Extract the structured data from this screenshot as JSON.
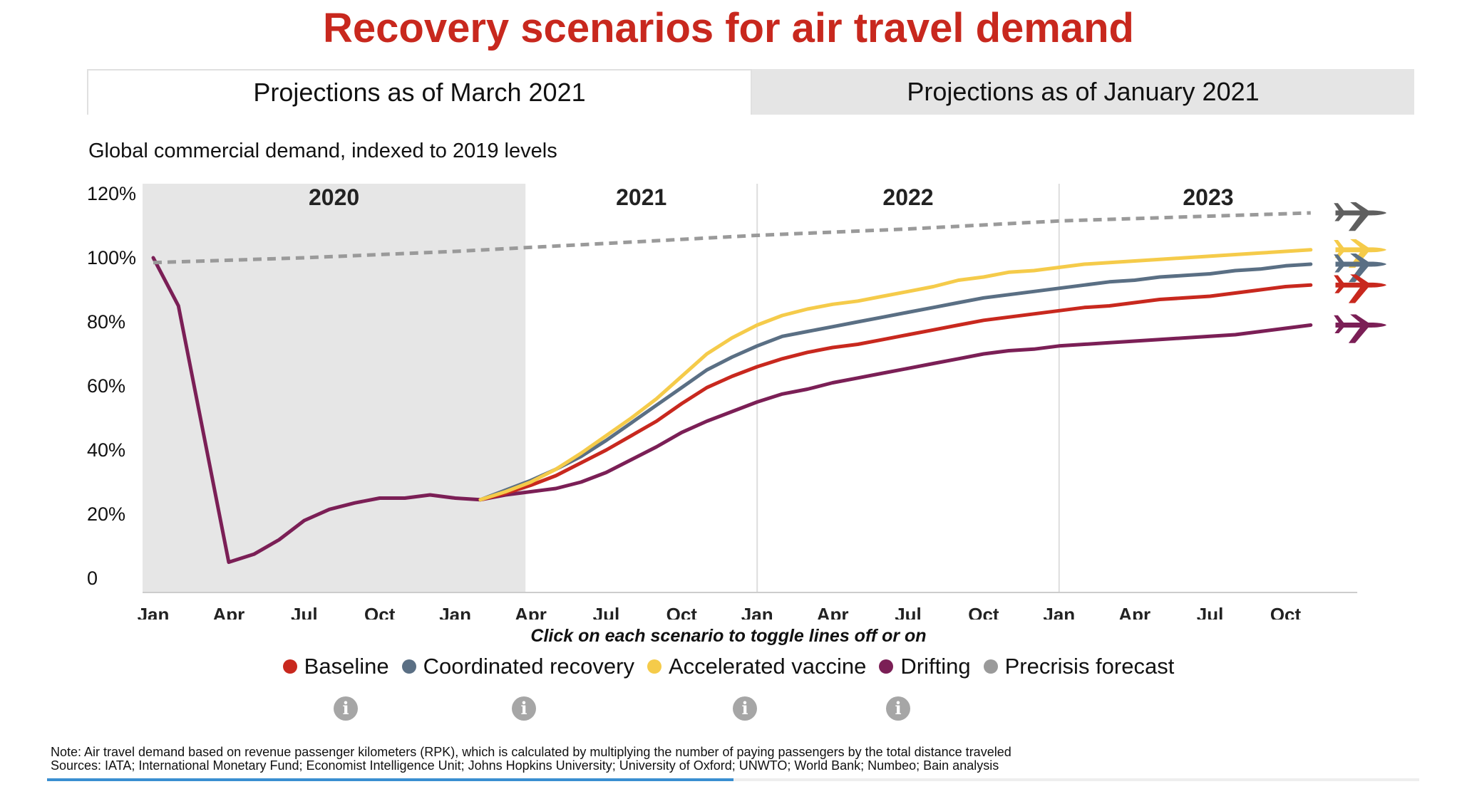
{
  "title": "Recovery scenarios for air travel demand",
  "tabs": [
    {
      "label": "Projections as of March 2021",
      "active": true
    },
    {
      "label": "Projections as of January 2021",
      "active": false
    }
  ],
  "subtitle": "Global commercial demand, indexed to 2019 levels",
  "chart_data": {
    "type": "line",
    "ylabel": "Global commercial demand, indexed to 2019 levels",
    "ylim": [
      0,
      120
    ],
    "ytick_labels": [
      "0",
      "20%",
      "40%",
      "60%",
      "80%",
      "100%",
      "120%"
    ],
    "xrange_months": [
      "2020-01",
      "2023-12"
    ],
    "x_ticks": [
      {
        "date": "2020-01",
        "label": "Jan"
      },
      {
        "date": "2020-04",
        "label": "Apr"
      },
      {
        "date": "2020-07",
        "label": "Jul"
      },
      {
        "date": "2020-10",
        "label": "Oct"
      },
      {
        "date": "2021-01",
        "label": "Jan"
      },
      {
        "date": "2021-04",
        "label": "Apr"
      },
      {
        "date": "2021-07",
        "label": "Jul"
      },
      {
        "date": "2021-10",
        "label": "Oct"
      },
      {
        "date": "2022-01",
        "label": "Jan"
      },
      {
        "date": "2022-04",
        "label": "Apr"
      },
      {
        "date": "2022-07",
        "label": "Jul"
      },
      {
        "date": "2022-10",
        "label": "Oct"
      },
      {
        "date": "2023-01",
        "label": "Jan"
      },
      {
        "date": "2023-04",
        "label": "Apr"
      },
      {
        "date": "2023-07",
        "label": "Jul"
      },
      {
        "date": "2023-10",
        "label": "Oct"
      }
    ],
    "year_labels": [
      {
        "label": "2020",
        "shaded": true
      },
      {
        "label": "2021",
        "shaded": false
      },
      {
        "label": "2022",
        "shaded": false
      },
      {
        "label": "2023",
        "shaded": false
      }
    ],
    "shaded_region": [
      "2020-01",
      "2021-03"
    ],
    "year_dividers": [
      "2022-01",
      "2023-01"
    ],
    "grid": false,
    "legend_position": "bottom",
    "series": [
      {
        "name": "Drifting",
        "color": "#7b1f56",
        "dashed": false,
        "points": [
          [
            "2020-01",
            100
          ],
          [
            "2020-02",
            85
          ],
          [
            "2020-03",
            45
          ],
          [
            "2020-04",
            5
          ],
          [
            "2020-05",
            7.5
          ],
          [
            "2020-06",
            12
          ],
          [
            "2020-07",
            18
          ],
          [
            "2020-08",
            21.5
          ],
          [
            "2020-09",
            23.5
          ],
          [
            "2020-10",
            25
          ],
          [
            "2020-11",
            25
          ],
          [
            "2020-12",
            26
          ],
          [
            "2021-01",
            25
          ],
          [
            "2021-02",
            24.5
          ],
          [
            "2021-03",
            26
          ],
          [
            "2021-04",
            27
          ],
          [
            "2021-05",
            28
          ],
          [
            "2021-06",
            30
          ],
          [
            "2021-07",
            33
          ],
          [
            "2021-08",
            37
          ],
          [
            "2021-09",
            41
          ],
          [
            "2021-10",
            45.5
          ],
          [
            "2021-11",
            49
          ],
          [
            "2021-12",
            52
          ],
          [
            "2022-01",
            55
          ],
          [
            "2022-02",
            57.5
          ],
          [
            "2022-03",
            59
          ],
          [
            "2022-04",
            61
          ],
          [
            "2022-05",
            62.5
          ],
          [
            "2022-06",
            64
          ],
          [
            "2022-07",
            65.5
          ],
          [
            "2022-08",
            67
          ],
          [
            "2022-09",
            68.5
          ],
          [
            "2022-10",
            70
          ],
          [
            "2022-11",
            71
          ],
          [
            "2022-12",
            71.5
          ],
          [
            "2023-01",
            72.5
          ],
          [
            "2023-02",
            73
          ],
          [
            "2023-03",
            73.5
          ],
          [
            "2023-04",
            74
          ],
          [
            "2023-05",
            74.5
          ],
          [
            "2023-06",
            75
          ],
          [
            "2023-07",
            75.5
          ],
          [
            "2023-08",
            76
          ],
          [
            "2023-09",
            77
          ],
          [
            "2023-10",
            78
          ],
          [
            "2023-11",
            79
          ]
        ]
      },
      {
        "name": "Baseline",
        "color": "#c8281e",
        "dashed": false,
        "points": [
          [
            "2021-02",
            24.5
          ],
          [
            "2021-03",
            26.5
          ],
          [
            "2021-04",
            29
          ],
          [
            "2021-05",
            32
          ],
          [
            "2021-06",
            36
          ],
          [
            "2021-07",
            40
          ],
          [
            "2021-08",
            44.5
          ],
          [
            "2021-09",
            49
          ],
          [
            "2021-10",
            54.5
          ],
          [
            "2021-11",
            59.5
          ],
          [
            "2021-12",
            63
          ],
          [
            "2022-01",
            66
          ],
          [
            "2022-02",
            68.5
          ],
          [
            "2022-03",
            70.5
          ],
          [
            "2022-04",
            72
          ],
          [
            "2022-05",
            73
          ],
          [
            "2022-06",
            74.5
          ],
          [
            "2022-07",
            76
          ],
          [
            "2022-08",
            77.5
          ],
          [
            "2022-09",
            79
          ],
          [
            "2022-10",
            80.5
          ],
          [
            "2022-11",
            81.5
          ],
          [
            "2022-12",
            82.5
          ],
          [
            "2023-01",
            83.5
          ],
          [
            "2023-02",
            84.5
          ],
          [
            "2023-03",
            85
          ],
          [
            "2023-04",
            86
          ],
          [
            "2023-05",
            87
          ],
          [
            "2023-06",
            87.5
          ],
          [
            "2023-07",
            88
          ],
          [
            "2023-08",
            89
          ],
          [
            "2023-09",
            90
          ],
          [
            "2023-10",
            91
          ],
          [
            "2023-11",
            91.5
          ]
        ]
      },
      {
        "name": "Coordinated recovery",
        "color": "#5a6f84",
        "dashed": false,
        "points": [
          [
            "2021-02",
            24.5
          ],
          [
            "2021-03",
            27.5
          ],
          [
            "2021-04",
            30.5
          ],
          [
            "2021-05",
            34
          ],
          [
            "2021-06",
            38
          ],
          [
            "2021-07",
            43
          ],
          [
            "2021-08",
            48.5
          ],
          [
            "2021-09",
            54
          ],
          [
            "2021-10",
            59.5
          ],
          [
            "2021-11",
            65
          ],
          [
            "2021-12",
            69
          ],
          [
            "2022-01",
            72.5
          ],
          [
            "2022-02",
            75.5
          ],
          [
            "2022-03",
            77
          ],
          [
            "2022-04",
            78.5
          ],
          [
            "2022-05",
            80
          ],
          [
            "2022-06",
            81.5
          ],
          [
            "2022-07",
            83
          ],
          [
            "2022-08",
            84.5
          ],
          [
            "2022-09",
            86
          ],
          [
            "2022-10",
            87.5
          ],
          [
            "2022-11",
            88.5
          ],
          [
            "2022-12",
            89.5
          ],
          [
            "2023-01",
            90.5
          ],
          [
            "2023-02",
            91.5
          ],
          [
            "2023-03",
            92.5
          ],
          [
            "2023-04",
            93
          ],
          [
            "2023-05",
            94
          ],
          [
            "2023-06",
            94.5
          ],
          [
            "2023-07",
            95
          ],
          [
            "2023-08",
            96
          ],
          [
            "2023-09",
            96.5
          ],
          [
            "2023-10",
            97.5
          ],
          [
            "2023-11",
            98
          ]
        ]
      },
      {
        "name": "Accelerated vaccine",
        "color": "#f5cb4a",
        "dashed": false,
        "points": [
          [
            "2021-02",
            24.5
          ],
          [
            "2021-03",
            27
          ],
          [
            "2021-04",
            30
          ],
          [
            "2021-05",
            34
          ],
          [
            "2021-06",
            39
          ],
          [
            "2021-07",
            44.5
          ],
          [
            "2021-08",
            50
          ],
          [
            "2021-09",
            56
          ],
          [
            "2021-10",
            63
          ],
          [
            "2021-11",
            70
          ],
          [
            "2021-12",
            75
          ],
          [
            "2022-01",
            79
          ],
          [
            "2022-02",
            82
          ],
          [
            "2022-03",
            84
          ],
          [
            "2022-04",
            85.5
          ],
          [
            "2022-05",
            86.5
          ],
          [
            "2022-06",
            88
          ],
          [
            "2022-07",
            89.5
          ],
          [
            "2022-08",
            91
          ],
          [
            "2022-09",
            93
          ],
          [
            "2022-10",
            94
          ],
          [
            "2022-11",
            95.5
          ],
          [
            "2022-12",
            96
          ],
          [
            "2023-01",
            97
          ],
          [
            "2023-02",
            98
          ],
          [
            "2023-03",
            98.5
          ],
          [
            "2023-04",
            99
          ],
          [
            "2023-05",
            99.5
          ],
          [
            "2023-06",
            100
          ],
          [
            "2023-07",
            100.5
          ],
          [
            "2023-08",
            101
          ],
          [
            "2023-09",
            101.5
          ],
          [
            "2023-10",
            102
          ],
          [
            "2023-11",
            102.5
          ]
        ]
      },
      {
        "name": "Precrisis forecast",
        "color": "#9a9a9a",
        "dashed": true,
        "points": [
          [
            "2020-01",
            98.5
          ],
          [
            "2020-07",
            100
          ],
          [
            "2021-01",
            102
          ],
          [
            "2021-07",
            104.5
          ],
          [
            "2022-01",
            107
          ],
          [
            "2022-07",
            109
          ],
          [
            "2023-01",
            111.5
          ],
          [
            "2023-11",
            114
          ]
        ]
      }
    ],
    "plane_icons": [
      {
        "color": "#5f5f5f",
        "value": 114
      },
      {
        "color": "#f5cb4a",
        "value": 102.5
      },
      {
        "color": "#5a6f84",
        "value": 98
      },
      {
        "color": "#c8281e",
        "value": 91.5
      },
      {
        "color": "#7b1f56",
        "value": 79
      }
    ]
  },
  "caption": "Click on each scenario to toggle lines off or on",
  "legend": [
    {
      "name": "Baseline",
      "color": "#c8281e"
    },
    {
      "name": "Coordinated recovery",
      "color": "#5a6f84"
    },
    {
      "name": "Accelerated vaccine",
      "color": "#f5cb4a"
    },
    {
      "name": "Drifting",
      "color": "#7b1f56"
    },
    {
      "name": "Precrisis forecast",
      "color": "#9a9a9a"
    }
  ],
  "info_icons": [
    "info-icon",
    "info-icon",
    "info-icon",
    "info-icon"
  ],
  "note": "Note: Air travel demand based on revenue passenger kilometers (RPK), which is calculated by multiplying the number of paying passengers by the total distance traveled",
  "sources": "Sources: IATA; International Monetary Fund; Economist Intelligence Unit; Johns Hopkins University; University of Oxford; UNWTO; World Bank; Numbeo; Bain analysis",
  "scroll_progress": 0.5
}
